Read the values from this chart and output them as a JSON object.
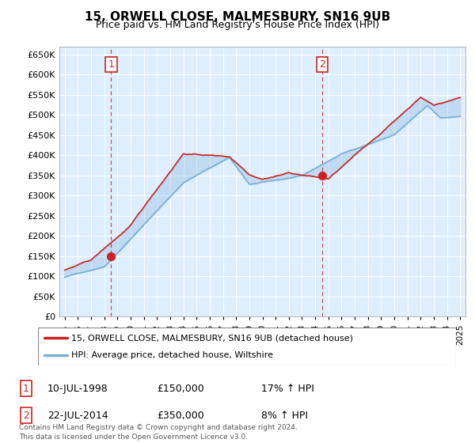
{
  "title": "15, ORWELL CLOSE, MALMESBURY, SN16 9UB",
  "subtitle": "Price paid vs. HM Land Registry's House Price Index (HPI)",
  "ylim": [
    0,
    670000
  ],
  "yticks": [
    0,
    50000,
    100000,
    150000,
    200000,
    250000,
    300000,
    350000,
    400000,
    450000,
    500000,
    550000,
    600000,
    650000
  ],
  "ytick_labels": [
    "£0",
    "£50K",
    "£100K",
    "£150K",
    "£200K",
    "£250K",
    "£300K",
    "£350K",
    "£400K",
    "£450K",
    "£500K",
    "£550K",
    "£600K",
    "£650K"
  ],
  "xlim_start": 1994.6,
  "xlim_end": 2025.4,
  "sale1_year": 1998.53,
  "sale1_price": 150000,
  "sale2_year": 2014.55,
  "sale2_price": 350000,
  "property_color": "#cc2222",
  "hpi_color": "#7aafd4",
  "fill_color": "#cce0f0",
  "legend_property": "15, ORWELL CLOSE, MALMESBURY, SN16 9UB (detached house)",
  "legend_hpi": "HPI: Average price, detached house, Wiltshire",
  "annotation1_label": "1",
  "annotation1_date": "10-JUL-1998",
  "annotation1_price": "£150,000",
  "annotation1_hpi": "17% ↑ HPI",
  "annotation2_label": "2",
  "annotation2_date": "22-JUL-2014",
  "annotation2_price": "£350,000",
  "annotation2_hpi": "8% ↑ HPI",
  "footnote": "Contains HM Land Registry data © Crown copyright and database right 2024.\nThis data is licensed under the Open Government Licence v3.0.",
  "chart_bg": "#ddeeff",
  "background_color": "#ffffff",
  "grid_color": "#ffffff"
}
